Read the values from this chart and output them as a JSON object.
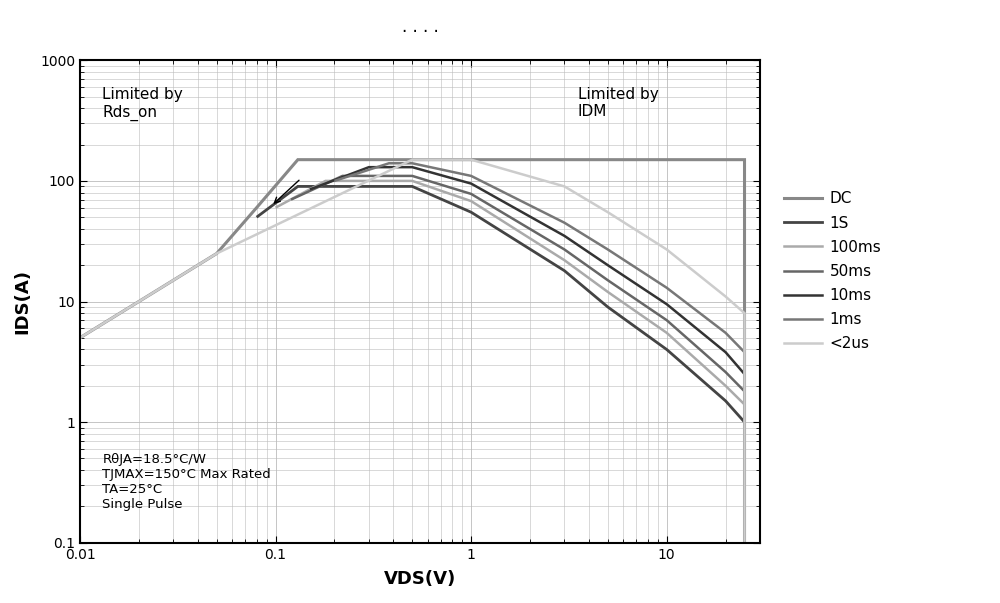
{
  "xlabel": "VDS(V)",
  "ylabel": "IDS(A)",
  "xlim": [
    0.01,
    30
  ],
  "ylim": [
    0.1,
    1000
  ],
  "curves": [
    {
      "label": "DC",
      "color": "#888888",
      "lw": 2.2,
      "x": [
        0.01,
        0.015,
        0.02,
        0.03,
        0.05,
        0.08,
        0.13,
        0.5,
        25.0,
        25.0
      ],
      "y": [
        5.0,
        7.5,
        10.0,
        15.0,
        25.0,
        60.0,
        150.0,
        150.0,
        150.0,
        0.1
      ]
    },
    {
      "label": "1S",
      "color": "#444444",
      "lw": 2.0,
      "x": [
        0.08,
        0.13,
        0.5,
        1.0,
        3.0,
        5.0,
        10.0,
        20.0,
        25.0,
        25.0
      ],
      "y": [
        50.0,
        90.0,
        90.0,
        55.0,
        18.0,
        9.0,
        4.0,
        1.5,
        1.0,
        0.1
      ]
    },
    {
      "label": "100ms",
      "color": "#aaaaaa",
      "lw": 1.8,
      "x": [
        0.1,
        0.18,
        0.5,
        1.0,
        3.0,
        5.0,
        10.0,
        20.0,
        25.0,
        25.0
      ],
      "y": [
        60.0,
        100.0,
        100.0,
        68.0,
        22.0,
        12.0,
        5.5,
        2.0,
        1.4,
        0.1
      ]
    },
    {
      "label": "50ms",
      "color": "#666666",
      "lw": 1.8,
      "x": [
        0.12,
        0.22,
        0.5,
        1.0,
        3.0,
        5.0,
        10.0,
        20.0,
        25.0,
        25.0
      ],
      "y": [
        70.0,
        110.0,
        110.0,
        78.0,
        27.0,
        15.0,
        7.0,
        2.6,
        1.8,
        0.1
      ]
    },
    {
      "label": "10ms",
      "color": "#333333",
      "lw": 1.8,
      "x": [
        0.15,
        0.3,
        0.5,
        1.0,
        3.0,
        5.0,
        10.0,
        20.0,
        25.0,
        25.0
      ],
      "y": [
        85.0,
        130.0,
        130.0,
        95.0,
        35.0,
        20.0,
        9.5,
        3.8,
        2.5,
        0.1
      ]
    },
    {
      "label": "1ms",
      "color": "#777777",
      "lw": 1.8,
      "x": [
        0.2,
        0.38,
        0.5,
        1.0,
        3.0,
        5.0,
        10.0,
        20.0,
        25.0,
        25.0
      ],
      "y": [
        100.0,
        140.0,
        140.0,
        110.0,
        45.0,
        27.0,
        13.0,
        5.5,
        3.8,
        0.1
      ]
    },
    {
      "label": "<2us",
      "color": "#cccccc",
      "lw": 1.8,
      "x": [
        0.01,
        0.05,
        0.5,
        1.0,
        3.0,
        5.0,
        10.0,
        20.0,
        25.0,
        25.0
      ],
      "y": [
        5.0,
        25.0,
        150.0,
        150.0,
        90.0,
        55.0,
        27.0,
        11.0,
        8.0,
        0.1
      ]
    }
  ],
  "legend_labels": [
    "DC",
    "1S",
    "100ms",
    "50ms",
    "10ms",
    "1ms",
    "<2us"
  ],
  "legend_colors": [
    "#888888",
    "#444444",
    "#aaaaaa",
    "#666666",
    "#333333",
    "#777777",
    "#cccccc"
  ],
  "legend_lws": [
    2.2,
    2.0,
    1.8,
    1.8,
    1.8,
    1.8,
    1.8
  ],
  "background_color": "#ffffff",
  "grid_color": "#bbbbbb"
}
